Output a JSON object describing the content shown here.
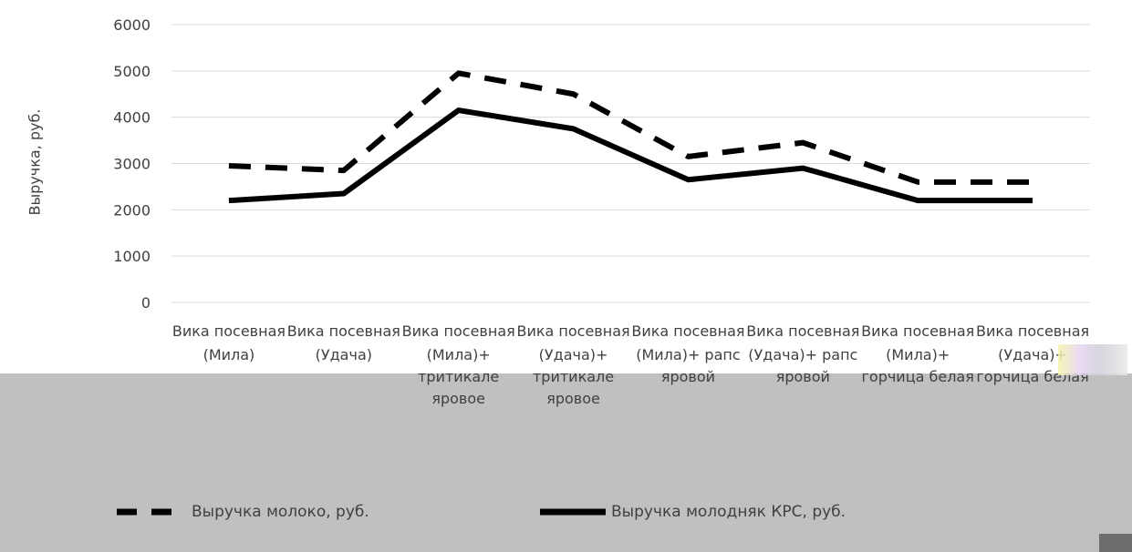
{
  "chart_data": {
    "type": "line",
    "title": "",
    "xlabel": "",
    "ylabel": "Выручка, руб.",
    "ylim": [
      0,
      6000
    ],
    "yticks": [
      0,
      1000,
      2000,
      3000,
      4000,
      5000,
      6000
    ],
    "grid": true,
    "legend_position": "bottom",
    "categories": [
      {
        "line1": "Вика посевная",
        "line2": "(Мила)"
      },
      {
        "line1": "Вика посевная",
        "line2": "(Удача)"
      },
      {
        "line1": "Вика посевная",
        "line2": "(Мила)+ тритикале яровое"
      },
      {
        "line1": "Вика посевная",
        "line2": "(Удача)+ тритикале яровое"
      },
      {
        "line1": "Вика посевная",
        "line2": "(Мила)+ рапс яровой"
      },
      {
        "line1": "Вика посевная",
        "line2": "(Удача)+ рапс яровой"
      },
      {
        "line1": "Вика посевная",
        "line2": "(Мила)+ горчица белая"
      },
      {
        "line1": "Вика посевная",
        "line2": "(Удача)+ горчица белая"
      }
    ],
    "series": [
      {
        "name": "Выручка молоко, руб.",
        "style": "dashed",
        "color": "#000000",
        "values": [
          2950,
          2850,
          4950,
          4500,
          3150,
          3450,
          2600,
          2600
        ]
      },
      {
        "name": "Выручка молодняк КРС, руб.",
        "style": "solid",
        "color": "#000000",
        "values": [
          2200,
          2350,
          4150,
          3750,
          2650,
          2900,
          2200,
          2200
        ]
      }
    ]
  },
  "colors": {
    "gridline": "#d9d9d9",
    "text": "#404040",
    "panel": "#c0c0c0"
  }
}
